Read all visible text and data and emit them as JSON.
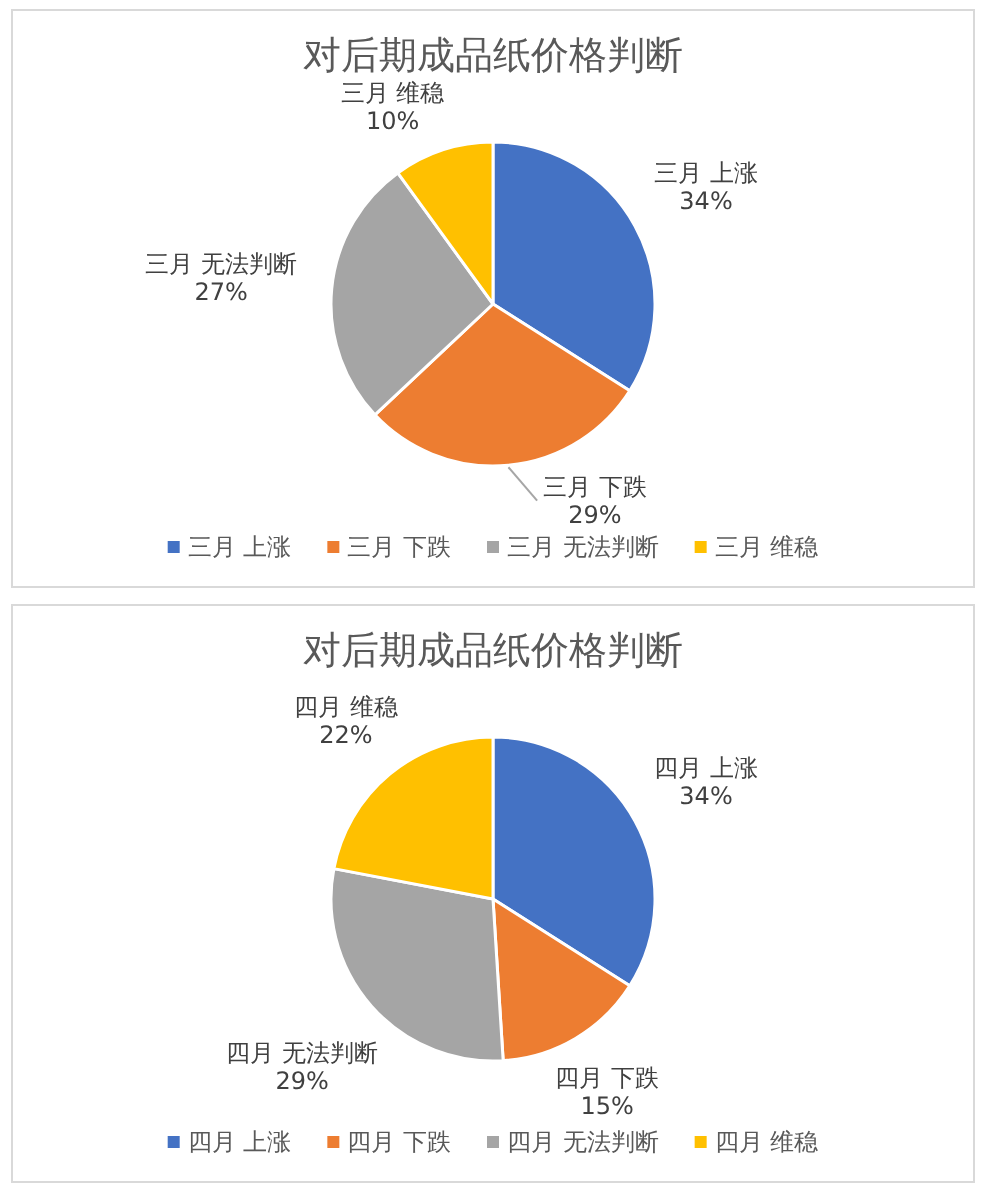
{
  "chart_data": [
    {
      "type": "pie",
      "title": "对后期成品纸价格判断",
      "categories": [
        "三月 上涨",
        "三月 下跌",
        "三月 无法判断",
        "三月 维稳"
      ],
      "values": [
        34,
        29,
        27,
        10
      ],
      "colors": [
        "#4472c4",
        "#ed7d31",
        "#a5a5a5",
        "#ffc000"
      ],
      "value_labels": [
        "34%",
        "29%",
        "27%",
        "10%"
      ],
      "legend": "bottom"
    },
    {
      "type": "pie",
      "title": "对后期成品纸价格判断",
      "categories": [
        "四月 上涨",
        "四月 下跌",
        "四月 无法判断",
        "四月 维稳"
      ],
      "values": [
        34,
        15,
        29,
        22
      ],
      "colors": [
        "#4472c4",
        "#ed7d31",
        "#a5a5a5",
        "#ffc000"
      ],
      "value_labels": [
        "34%",
        "15%",
        "29%",
        "22%"
      ],
      "legend": "bottom"
    }
  ]
}
